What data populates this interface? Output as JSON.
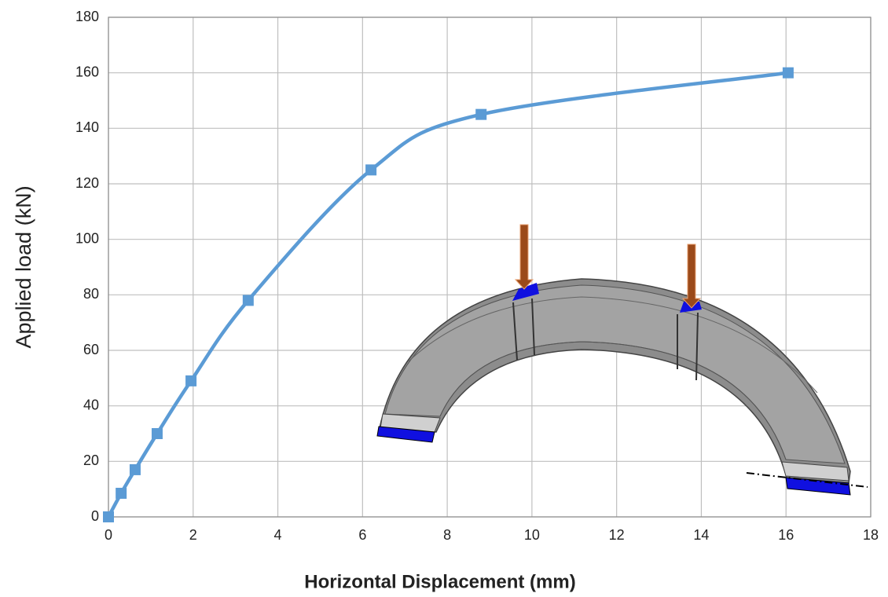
{
  "chart_data": {
    "type": "line",
    "x_label": "Horizontal Displacement (mm)",
    "y_label": "Applied load (kN)",
    "series": [
      {
        "color": "#5b9bd5",
        "x": [
          0,
          0.3,
          0.63,
          1.15,
          1.95,
          3.3,
          6.2,
          8.8,
          16.05
        ],
        "values": [
          0,
          8.5,
          17,
          30,
          49,
          78,
          125,
          145,
          160
        ]
      }
    ],
    "xlim": [
      0,
      18
    ],
    "xticks": [
      0,
      2,
      4,
      6,
      8,
      10,
      12,
      14,
      16,
      18
    ],
    "ylim": [
      0,
      180
    ],
    "yticks": [
      0,
      20,
      40,
      60,
      80,
      100,
      120,
      140,
      160,
      180
    ],
    "grid": true,
    "smooth": true,
    "marker": "square"
  }
}
